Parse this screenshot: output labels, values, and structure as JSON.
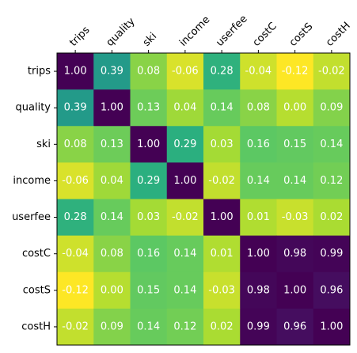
{
  "chart_data": {
    "type": "heatmap",
    "x_categories": [
      "trips",
      "quality",
      "ski",
      "income",
      "userfee",
      "costC",
      "costS",
      "costH"
    ],
    "y_categories": [
      "trips",
      "quality",
      "ski",
      "income",
      "userfee",
      "costC",
      "costS",
      "costH"
    ],
    "values": [
      [
        1.0,
        0.39,
        0.08,
        -0.06,
        0.28,
        -0.04,
        -0.12,
        -0.02
      ],
      [
        0.39,
        1.0,
        0.13,
        0.04,
        0.14,
        0.08,
        0.0,
        0.09
      ],
      [
        0.08,
        0.13,
        1.0,
        0.29,
        0.03,
        0.16,
        0.15,
        0.14
      ],
      [
        -0.06,
        0.04,
        0.29,
        1.0,
        -0.02,
        0.14,
        0.14,
        0.12
      ],
      [
        0.28,
        0.14,
        0.03,
        -0.02,
        1.0,
        0.01,
        -0.03,
        0.02
      ],
      [
        -0.04,
        0.08,
        0.16,
        0.14,
        0.01,
        1.0,
        0.98,
        0.99
      ],
      [
        -0.12,
        0.0,
        0.15,
        0.14,
        -0.03,
        0.98,
        1.0,
        0.96
      ],
      [
        -0.02,
        0.09,
        0.14,
        0.12,
        0.02,
        0.99,
        0.96,
        1.0
      ]
    ],
    "colormap": "viridis_r",
    "value_format": "2 decimals",
    "x_ticks_position": "top",
    "x_tick_rotation": 45,
    "text_color": "#ffffff",
    "title": "",
    "xlabel": "",
    "ylabel": ""
  }
}
